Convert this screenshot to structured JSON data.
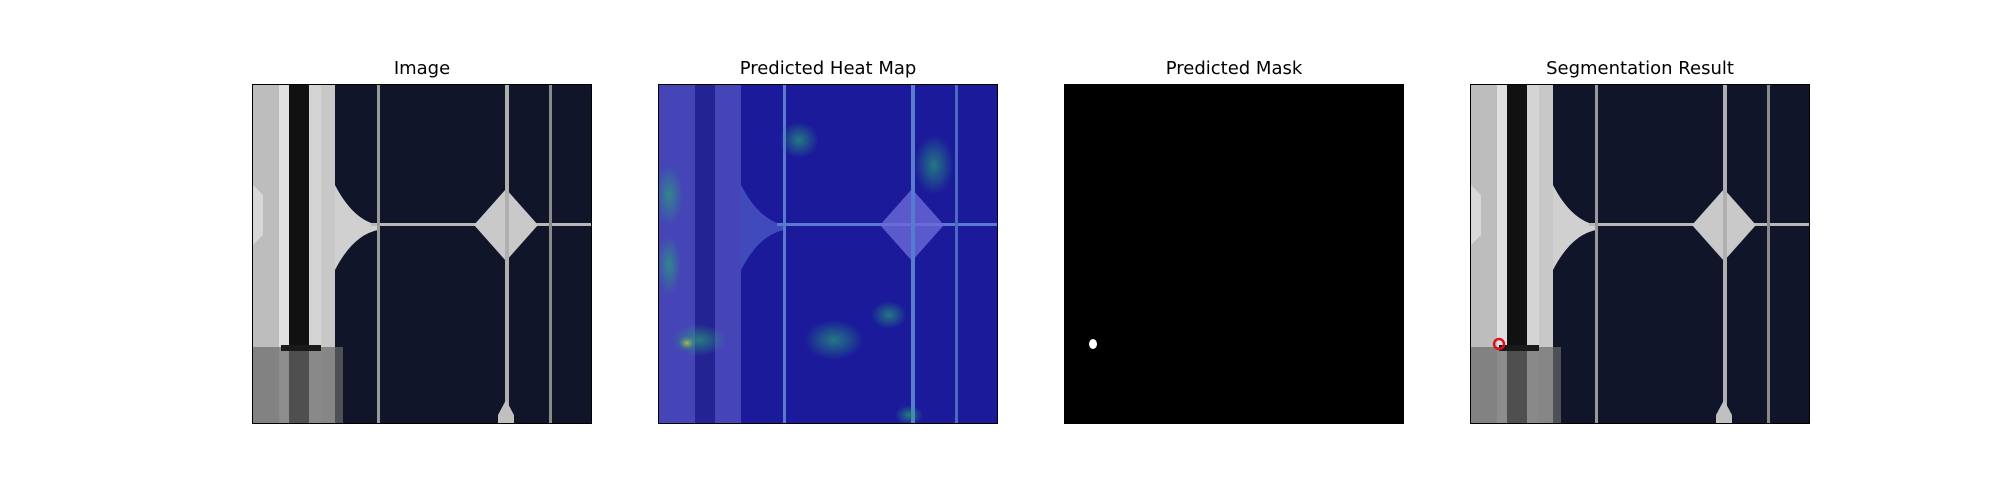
{
  "figure": {
    "panels": [
      {
        "id": "image",
        "title": "Image"
      },
      {
        "id": "heatmap",
        "title": "Predicted Heat Map"
      },
      {
        "id": "mask",
        "title": "Predicted Mask"
      },
      {
        "id": "segmentation",
        "title": "Segmentation Result"
      }
    ]
  },
  "colors": {
    "cell_dark": "#10152a",
    "busbar": "#cfcfcf",
    "heat_low": "#1a1a9a",
    "heat_mid": "#2aa07a",
    "heat_high": "#c8c040",
    "mask_bg": "#000000",
    "mask_fg": "#ffffff",
    "defect_outline": "#e01020"
  }
}
